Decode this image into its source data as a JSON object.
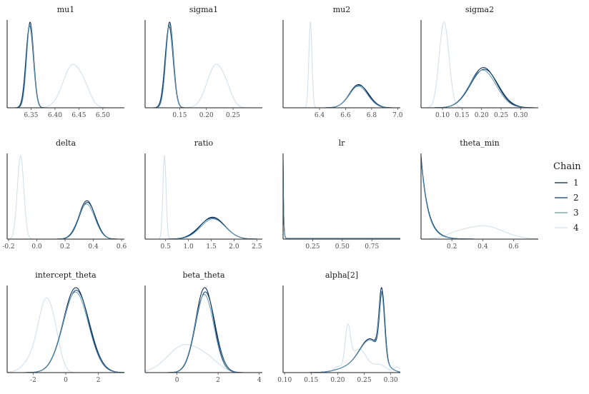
{
  "legend": {
    "title": "Chain",
    "chains": [
      {
        "label": "1",
        "color": "#011f4b"
      },
      {
        "label": "2",
        "color": "#03396c"
      },
      {
        "label": "3",
        "color": "#6497b1"
      },
      {
        "label": "4",
        "color": "#d1e1ec"
      }
    ]
  },
  "chart_data": [
    {
      "type": "area",
      "title": "mu1",
      "xlim": [
        6.3,
        6.545
      ],
      "ticks": [
        6.35,
        6.4,
        6.45,
        6.5
      ],
      "tick_labels": [
        "6.35",
        "6.40",
        "6.45",
        "6.50"
      ],
      "series": [
        {
          "name": "1",
          "components": [
            [
              6.348,
              0.0075,
              1.0
            ]
          ]
        },
        {
          "name": "2",
          "components": [
            [
              6.347,
              0.0078,
              0.96
            ]
          ]
        },
        {
          "name": "3",
          "components": [
            [
              6.348,
              0.0072,
              0.98
            ]
          ]
        },
        {
          "name": "4",
          "components": [
            [
              6.437,
              0.02,
              0.5
            ],
            [
              6.465,
              0.012,
              0.1
            ]
          ]
        }
      ]
    },
    {
      "type": "area",
      "title": "sigma1",
      "xlim": [
        0.085,
        0.305
      ],
      "ticks": [
        0.15,
        0.2,
        0.25
      ],
      "tick_labels": [
        "0.15",
        "0.20",
        "0.25"
      ],
      "series": [
        {
          "name": "1",
          "components": [
            [
              0.131,
              0.0072,
              1.0
            ]
          ]
        },
        {
          "name": "2",
          "components": [
            [
              0.13,
              0.0075,
              0.95
            ]
          ]
        },
        {
          "name": "3",
          "components": [
            [
              0.131,
              0.007,
              0.97
            ]
          ]
        },
        {
          "name": "4",
          "components": [
            [
              0.218,
              0.0165,
              0.5
            ],
            [
              0.24,
              0.01,
              0.08
            ]
          ]
        }
      ]
    },
    {
      "type": "area",
      "title": "mu2",
      "xlim": [
        6.12,
        7.02
      ],
      "ticks": [
        6.4,
        6.6,
        6.8,
        7.0
      ],
      "tick_labels": [
        "6.4",
        "6.6",
        "6.8",
        "7.0"
      ],
      "series": [
        {
          "name": "1",
          "components": [
            [
              6.7,
              0.071,
              0.27
            ]
          ]
        },
        {
          "name": "2",
          "components": [
            [
              6.705,
              0.074,
              0.26
            ]
          ]
        },
        {
          "name": "3",
          "components": [
            [
              6.698,
              0.072,
              0.25
            ]
          ]
        },
        {
          "name": "4",
          "components": [
            [
              6.33,
              0.012,
              1.0
            ]
          ]
        }
      ]
    },
    {
      "type": "area",
      "title": "sigma2",
      "xlim": [
        0.045,
        0.345
      ],
      "ticks": [
        0.1,
        0.15,
        0.2,
        0.25,
        0.3
      ],
      "tick_labels": [
        "0.10",
        "0.15",
        "0.20",
        "0.25",
        "0.30"
      ],
      "series": [
        {
          "name": "1",
          "components": [
            [
              0.205,
              0.034,
              0.47
            ]
          ]
        },
        {
          "name": "2",
          "components": [
            [
              0.207,
              0.035,
              0.45
            ]
          ]
        },
        {
          "name": "3",
          "components": [
            [
              0.203,
              0.034,
              0.44
            ]
          ]
        },
        {
          "name": "4",
          "components": [
            [
              0.104,
              0.0125,
              1.0
            ]
          ]
        }
      ]
    },
    {
      "type": "area",
      "title": "delta",
      "xlim": [
        -0.21,
        0.62
      ],
      "ticks": [
        -0.2,
        0.0,
        0.2,
        0.4,
        0.6
      ],
      "tick_labels": [
        "-0.2",
        "0.0",
        "0.2",
        "0.4",
        "0.6"
      ],
      "series": [
        {
          "name": "1",
          "components": [
            [
              0.355,
              0.057,
              0.46
            ]
          ]
        },
        {
          "name": "2",
          "components": [
            [
              0.358,
              0.058,
              0.44
            ]
          ]
        },
        {
          "name": "3",
          "components": [
            [
              0.352,
              0.059,
              0.42
            ]
          ]
        },
        {
          "name": "4",
          "components": [
            [
              -0.115,
              0.023,
              1.0
            ]
          ]
        }
      ]
    },
    {
      "type": "area",
      "title": "ratio",
      "xlim": [
        0.05,
        2.62
      ],
      "ticks": [
        0.5,
        1.0,
        1.5,
        2.0,
        2.5
      ],
      "tick_labels": [
        "0.5",
        "1.0",
        "1.5",
        "2.0",
        "2.5"
      ],
      "series": [
        {
          "name": "1",
          "components": [
            [
              1.53,
              0.27,
              0.25
            ]
          ]
        },
        {
          "name": "2",
          "components": [
            [
              1.52,
              0.28,
              0.24
            ]
          ]
        },
        {
          "name": "3",
          "components": [
            [
              1.54,
              0.27,
              0.23
            ]
          ]
        },
        {
          "name": "4",
          "components": [
            [
              0.475,
              0.035,
              0.95
            ]
          ]
        }
      ]
    },
    {
      "type": "area",
      "title": "lr",
      "xlim": [
        0.0,
        0.99
      ],
      "ticks": [
        0.25,
        0.5,
        0.75
      ],
      "tick_labels": [
        "0.25",
        "0.50",
        "0.75"
      ],
      "series": [
        {
          "name": "1",
          "decay": [
            0.0,
            0.0045,
            1.0
          ],
          "floor": 0.006
        },
        {
          "name": "2",
          "decay": [
            0.0,
            0.0048,
            0.95
          ],
          "floor": 0.006
        },
        {
          "name": "3",
          "decay": [
            0.0,
            0.0046,
            0.97
          ],
          "floor": 0.006
        },
        {
          "name": "4",
          "decay": [
            0.0,
            0.006,
            0.45
          ],
          "floor": 0.012
        }
      ]
    },
    {
      "type": "area",
      "title": "theta_min",
      "xlim": [
        0.0,
        0.76
      ],
      "ticks": [
        0.2,
        0.4,
        0.6
      ],
      "tick_labels": [
        "0.2",
        "0.4",
        "0.6"
      ],
      "series": [
        {
          "name": "1",
          "decay": [
            0.0,
            0.045,
            1.0
          ],
          "floor": 0.0
        },
        {
          "name": "2",
          "decay": [
            0.0,
            0.046,
            0.98
          ],
          "floor": 0.0
        },
        {
          "name": "3",
          "decay": [
            0.0,
            0.044,
            0.96
          ],
          "floor": 0.0
        },
        {
          "name": "4",
          "components": [
            [
              0.4,
              0.13,
              0.16
            ],
            [
              0.22,
              0.06,
              0.03
            ]
          ]
        }
      ]
    },
    {
      "type": "area",
      "title": "intercept_theta",
      "xlim": [
        -3.6,
        3.6
      ],
      "ticks": [
        -2,
        0,
        2
      ],
      "tick_labels": [
        "-2",
        "0",
        "2"
      ],
      "series": [
        {
          "name": "1",
          "components": [
            [
              0.62,
              0.78,
              0.98
            ]
          ]
        },
        {
          "name": "2",
          "components": [
            [
              0.65,
              0.8,
              0.95
            ]
          ]
        },
        {
          "name": "3",
          "components": [
            [
              0.6,
              0.79,
              0.93
            ]
          ]
        },
        {
          "name": "4",
          "components": [
            [
              -1.2,
              0.45,
              0.72
            ],
            [
              -1.9,
              0.6,
              0.18
            ],
            [
              -0.6,
              0.35,
              0.22
            ]
          ]
        }
      ]
    },
    {
      "type": "area",
      "title": "beta_theta",
      "xlim": [
        -1.55,
        4.15
      ],
      "ticks": [
        0,
        2,
        4
      ],
      "tick_labels": [
        "0",
        "2",
        "4"
      ],
      "series": [
        {
          "name": "1",
          "components": [
            [
              1.35,
              0.45,
              1.0
            ]
          ]
        },
        {
          "name": "2",
          "components": [
            [
              1.38,
              0.47,
              0.95
            ]
          ]
        },
        {
          "name": "3",
          "components": [
            [
              1.33,
              0.46,
              0.92
            ]
          ]
        },
        {
          "name": "4",
          "components": [
            [
              0.35,
              0.8,
              0.32
            ],
            [
              1.55,
              0.55,
              0.1
            ]
          ]
        }
      ]
    },
    {
      "type": "area",
      "title": "alpha[2]",
      "xlim": [
        0.097,
        0.318
      ],
      "ticks": [
        0.1,
        0.15,
        0.2,
        0.25,
        0.3
      ],
      "tick_labels": [
        "0.10",
        "0.15",
        "0.20",
        "0.25",
        "0.30"
      ],
      "series": [
        {
          "name": "1",
          "components": [
            [
              0.283,
              0.005,
              0.62
            ],
            [
              0.262,
              0.02,
              0.3
            ],
            [
              0.225,
              0.025,
              0.05
            ]
          ]
        },
        {
          "name": "2",
          "components": [
            [
              0.284,
              0.005,
              0.6
            ],
            [
              0.262,
              0.02,
              0.29
            ],
            [
              0.225,
              0.025,
              0.05
            ]
          ]
        },
        {
          "name": "3",
          "components": [
            [
              0.283,
              0.005,
              0.58
            ],
            [
              0.262,
              0.02,
              0.29
            ],
            [
              0.225,
              0.025,
              0.05
            ]
          ]
        },
        {
          "name": "4",
          "components": [
            [
              0.219,
              0.005,
              0.37
            ],
            [
              0.24,
              0.015,
              0.22
            ],
            [
              0.28,
              0.012,
              0.07
            ],
            [
              0.312,
              0.006,
              0.05
            ],
            [
              0.2,
              0.008,
              0.05
            ]
          ]
        }
      ]
    }
  ]
}
